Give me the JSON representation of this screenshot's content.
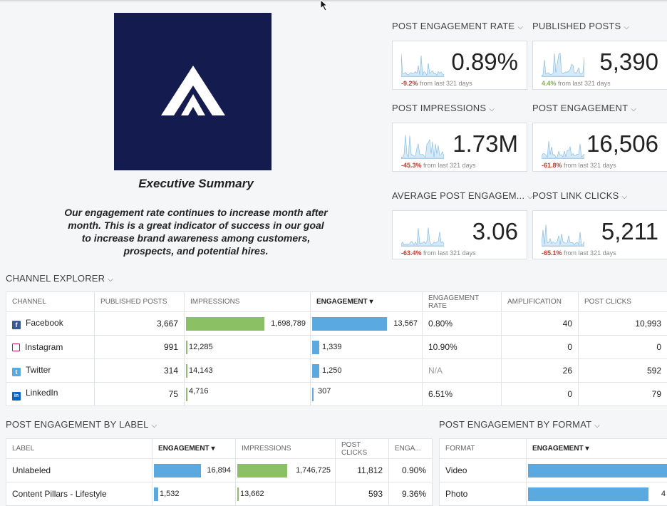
{
  "summary": {
    "title": "Executive Summary",
    "text": "Our engagement rate continues to increase month after month. This is a great indicator of success in our goal to increase brand awareness among customers, prospects, and potential hires."
  },
  "kpis": [
    {
      "label": "POST ENGAGEMENT RATE",
      "value": "0.89%",
      "change": "-9.2%",
      "change_dir": "neg",
      "suffix": "from last 321 days"
    },
    {
      "label": "PUBLISHED POSTS",
      "value": "5,390",
      "change": "4.4%",
      "change_dir": "pos",
      "suffix": "from last 321 days"
    },
    {
      "label": "POST IMPRESSIONS",
      "value": "1.73M",
      "change": "-45.3%",
      "change_dir": "neg",
      "suffix": "from last 321 days"
    },
    {
      "label": "POST ENGAGEMENT",
      "value": "16,506",
      "change": "-61.8%",
      "change_dir": "neg",
      "suffix": "from last 321 days"
    },
    {
      "label": "AVERAGE POST ENGAGEM...",
      "value": "3.06",
      "change": "-63.4%",
      "change_dir": "neg",
      "suffix": "from last 321 days"
    },
    {
      "label": "POST LINK CLICKS",
      "value": "5,211",
      "change": "-65.1%",
      "change_dir": "neg",
      "suffix": "from last 321 days"
    }
  ],
  "channel_explorer": {
    "title": "CHANNEL EXPLORER",
    "headers": [
      "CHANNEL",
      "PUBLISHED POSTS",
      "IMPRESSIONS",
      "ENGAGEMENT",
      "ENGAGEMENT RATE",
      "AMPLIFICATION",
      "POST CLICKS"
    ],
    "rows": [
      {
        "channel": "Facebook",
        "icon": "facebook-icon",
        "color": "#3b5998",
        "glyph": "f",
        "posts": "3,667",
        "impressions": "1,698,789",
        "impr_frac": 1.0,
        "engagement": "13,567",
        "eng_frac": 1.0,
        "rate": "0.80%",
        "amplification": "40",
        "clicks": "10,993"
      },
      {
        "channel": "Instagram",
        "icon": "instagram-icon",
        "color": "#e1306c",
        "glyph": "",
        "posts": "991",
        "impressions": "12,285",
        "impr_frac": 0.007,
        "engagement": "1,339",
        "eng_frac": 0.099,
        "rate": "10.90%",
        "amplification": "0",
        "clicks": "0"
      },
      {
        "channel": "Twitter",
        "icon": "twitter-icon",
        "color": "#5aa9e0",
        "glyph": "t",
        "posts": "314",
        "impressions": "14,143",
        "impr_frac": 0.008,
        "engagement": "1,250",
        "eng_frac": 0.092,
        "rate": "N/A",
        "amplification": "26",
        "clicks": "592"
      },
      {
        "channel": "LinkedIn",
        "icon": "linkedin-icon",
        "color": "#0a66c2",
        "glyph": "in",
        "posts": "75",
        "impressions": "4,716",
        "impr_frac": 0.003,
        "engagement": "307",
        "eng_frac": 0.023,
        "rate": "6.51%",
        "amplification": "0",
        "clicks": "79"
      }
    ]
  },
  "by_label": {
    "title": "POST ENGAGEMENT BY LABEL",
    "headers": [
      "LABEL",
      "ENGAGEMENT",
      "IMPRESSIONS",
      "POST CLICKS",
      "ENGA..."
    ],
    "rows": [
      {
        "label": "Unlabeled",
        "engagement": "16,894",
        "eng_frac": 1.0,
        "impressions": "1,746,725",
        "impr_frac": 1.0,
        "clicks": "11,812",
        "rate": "0.90%"
      },
      {
        "label": "Content Pillars - Lifestyle",
        "engagement": "1,532",
        "eng_frac": 0.091,
        "impressions": "13,662",
        "impr_frac": 0.008,
        "clicks": "593",
        "rate": "9.36%"
      }
    ]
  },
  "by_format": {
    "title": "POST ENGAGEMENT BY FORMAT",
    "headers": [
      "FORMAT",
      "ENGAGEMENT"
    ],
    "rows": [
      {
        "format": "Video",
        "value": "",
        "frac": 1.0
      },
      {
        "format": "Photo",
        "value": "4",
        "frac": 0.86
      }
    ]
  },
  "colors": {
    "navy": "#141c4f",
    "green": "#8bc064",
    "blue": "#5aa9e0"
  }
}
